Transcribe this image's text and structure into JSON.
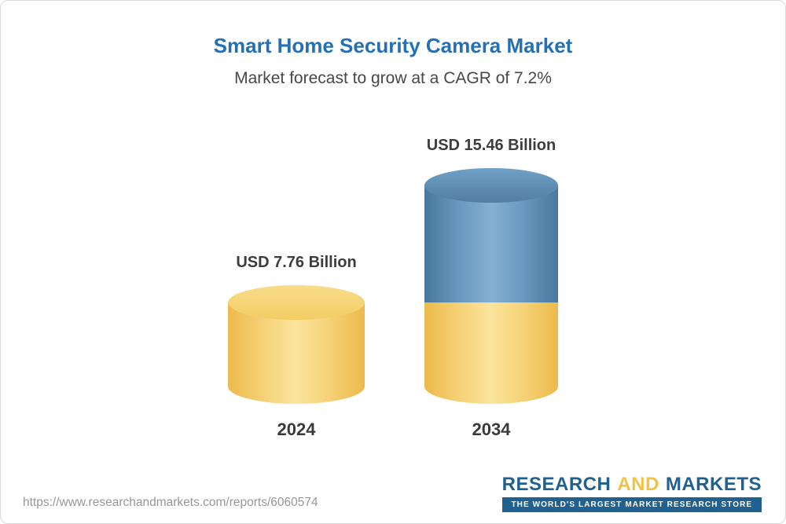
{
  "chart_data": {
    "type": "bar",
    "title": "Smart Home Security Camera Market",
    "subtitle": "Market forecast to grow at a CAGR of 7.2%",
    "categories": [
      "2024",
      "2034"
    ],
    "values": [
      7.76,
      15.46
    ],
    "value_labels": [
      "USD 7.76 Billion",
      "USD 15.46 Billion"
    ],
    "unit": "USD Billion",
    "cagr_percent": 7.2,
    "ylim": [
      0,
      16
    ],
    "legend": "none",
    "grid": "off",
    "bar_style": "3d-cylinder",
    "bar_colors": {
      "base_2024": "#f6d37a",
      "base_2034": "#f6d37a",
      "growth_2034": "#6d9dc4"
    }
  },
  "footer": {
    "url": "https://www.researchandmarkets.com/reports/6060574",
    "brand": {
      "word1": "RESEARCH",
      "word2": "AND",
      "word3": "MARKETS",
      "tagline": "THE WORLD'S LARGEST MARKET RESEARCH STORE"
    }
  },
  "colors": {
    "title_blue": "#2470b3",
    "subtitle_gray": "#474747",
    "label_gray": "#3d3d3d",
    "brand_blue": "#21618f",
    "brand_yellow": "#f2c245",
    "url_gray": "#979797"
  }
}
